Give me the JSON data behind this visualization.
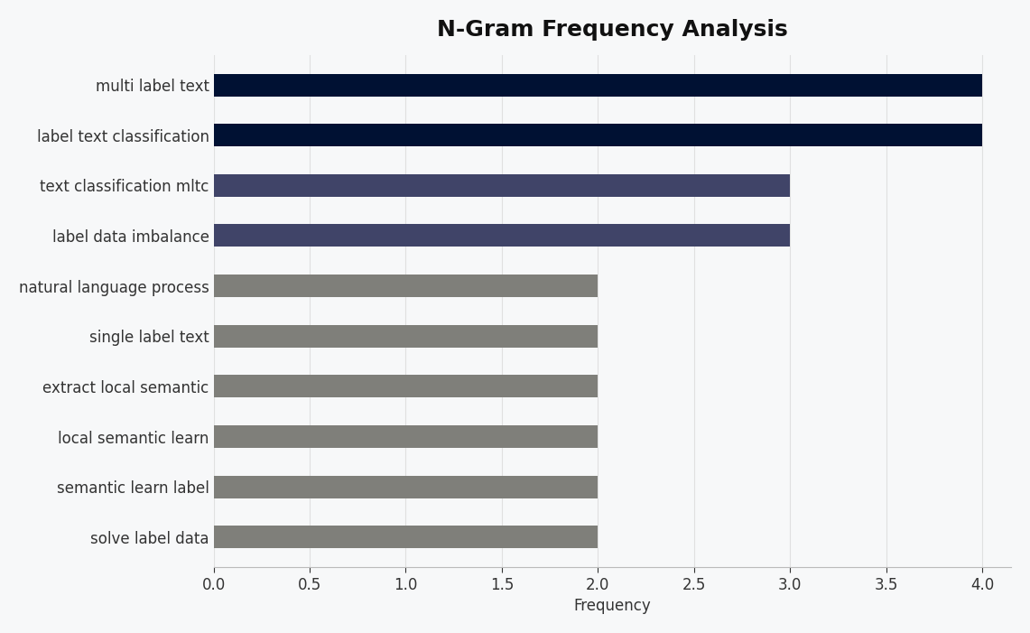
{
  "title": "N-Gram Frequency Analysis",
  "categories": [
    "solve label data",
    "semantic learn label",
    "local semantic learn",
    "extract local semantic",
    "single label text",
    "natural language process",
    "label data imbalance",
    "text classification mltc",
    "label text classification",
    "multi label text"
  ],
  "values": [
    2,
    2,
    2,
    2,
    2,
    2,
    3,
    3,
    4,
    4
  ],
  "bar_colors": [
    "#7f7f7a",
    "#7f7f7a",
    "#7f7f7a",
    "#7f7f7a",
    "#7f7f7a",
    "#7f7f7a",
    "#404468",
    "#404468",
    "#001133",
    "#001133"
  ],
  "xlabel": "Frequency",
  "ylabel": "",
  "xlim": [
    0,
    4.15
  ],
  "xticks": [
    0.0,
    0.5,
    1.0,
    1.5,
    2.0,
    2.5,
    3.0,
    3.5,
    4.0
  ],
  "background_color": "#f7f8f9",
  "title_fontsize": 18,
  "label_fontsize": 12,
  "tick_fontsize": 12,
  "bar_height": 0.45
}
